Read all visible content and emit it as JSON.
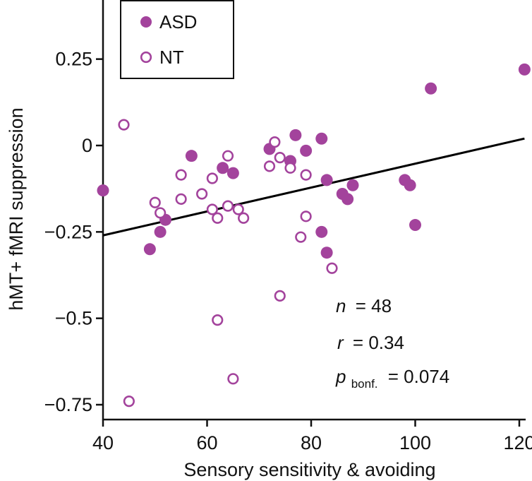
{
  "chart_data": {
    "type": "scatter",
    "title": "",
    "xlabel": "Sensory sensitivity & avoiding",
    "ylabel": "hMT+ fMRI suppression",
    "xlim": [
      40,
      121
    ],
    "ylim": [
      -0.78,
      0.42
    ],
    "xticks": [
      40,
      60,
      80,
      100,
      120
    ],
    "yticks": [
      0.25,
      0,
      -0.25,
      -0.5,
      -0.75
    ],
    "xtick_labels": [
      "40",
      "60",
      "80",
      "100",
      "120"
    ],
    "ytick_labels": [
      "0.25",
      "0",
      "−0.25",
      "−0.5",
      "−0.75"
    ],
    "grid": false,
    "legend_position": "top-left",
    "series": [
      {
        "name": "ASD",
        "marker": "filled-circle",
        "color": "#a3439c",
        "points": [
          [
            40,
            -0.13
          ],
          [
            49,
            -0.3
          ],
          [
            51,
            -0.25
          ],
          [
            52,
            -0.215
          ],
          [
            57,
            -0.03
          ],
          [
            63,
            -0.065
          ],
          [
            65,
            -0.08
          ],
          [
            72,
            -0.01
          ],
          [
            76,
            -0.045
          ],
          [
            77,
            0.03
          ],
          [
            79,
            -0.015
          ],
          [
            82,
            0.02
          ],
          [
            82,
            -0.25
          ],
          [
            83,
            -0.1
          ],
          [
            83,
            -0.31
          ],
          [
            86,
            -0.14
          ],
          [
            87,
            -0.155
          ],
          [
            88,
            -0.115
          ],
          [
            98,
            -0.1
          ],
          [
            99,
            -0.115
          ],
          [
            100,
            -0.23
          ],
          [
            103,
            0.165
          ],
          [
            121,
            0.22
          ]
        ]
      },
      {
        "name": "NT",
        "marker": "open-circle",
        "color": "#a3439c",
        "points": [
          [
            44,
            0.06
          ],
          [
            45,
            -0.74
          ],
          [
            50,
            -0.165
          ],
          [
            51,
            -0.195
          ],
          [
            55,
            -0.085
          ],
          [
            55,
            -0.155
          ],
          [
            59,
            -0.14
          ],
          [
            61,
            -0.095
          ],
          [
            61,
            -0.185
          ],
          [
            62,
            -0.21
          ],
          [
            62,
            -0.505
          ],
          [
            64,
            -0.03
          ],
          [
            64,
            -0.175
          ],
          [
            65,
            -0.675
          ],
          [
            66,
            -0.185
          ],
          [
            67,
            -0.21
          ],
          [
            72,
            -0.06
          ],
          [
            73,
            0.01
          ],
          [
            74,
            -0.035
          ],
          [
            74,
            -0.435
          ],
          [
            76,
            -0.065
          ],
          [
            78,
            -0.265
          ],
          [
            79,
            -0.085
          ],
          [
            79,
            -0.205
          ],
          [
            84,
            -0.355
          ]
        ]
      }
    ],
    "fit_line": {
      "x": [
        40,
        121
      ],
      "y": [
        -0.26,
        0.02
      ]
    },
    "legend": [
      {
        "label": "ASD",
        "marker": "filled-circle"
      },
      {
        "label": "NT",
        "marker": "open-circle"
      }
    ],
    "annotations": {
      "n_symbol": "n",
      "n_value": "= 48",
      "r_symbol": "r",
      "r_value": "= 0.34",
      "p_symbol": "p",
      "p_subscript": "bonf.",
      "p_value": "= 0.074"
    }
  },
  "colors": {
    "marker": "#a3439c",
    "axis": "#111111",
    "fit_line": "#000000"
  }
}
